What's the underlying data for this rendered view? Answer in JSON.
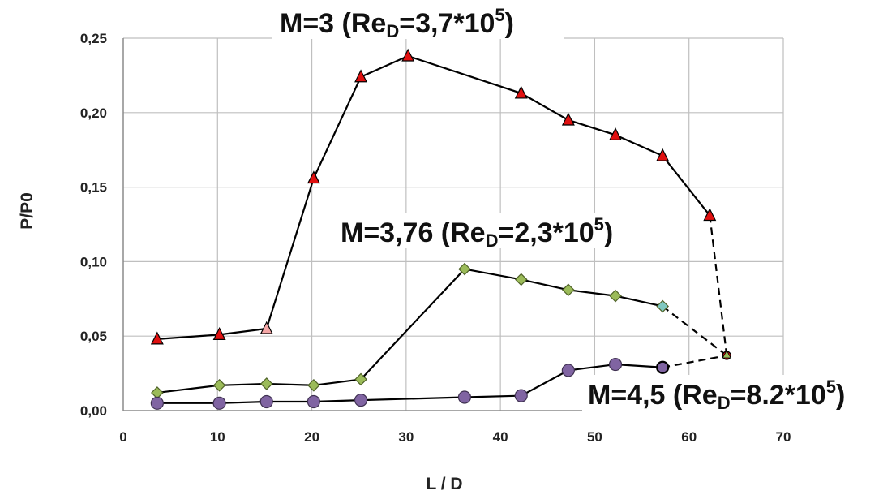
{
  "chart_data": {
    "type": "line",
    "xlabel": "L / D",
    "ylabel": "P/P0",
    "xlim": [
      0,
      70
    ],
    "ylim": [
      0,
      0.25
    ],
    "x_ticks": [
      "0",
      "10",
      "20",
      "30",
      "40",
      "50",
      "60",
      "70"
    ],
    "y_ticks": [
      "0,00",
      "0,05",
      "0,10",
      "0,15",
      "0,20",
      "0,25"
    ],
    "grid": true,
    "series": [
      {
        "name": "M=3 (ReD=3,7*10^5)",
        "marker": "triangle",
        "color": "#e01010",
        "points": [
          [
            3.6,
            0.048
          ],
          [
            10.2,
            0.051
          ],
          [
            15.2,
            0.055
          ],
          [
            20.2,
            0.156
          ],
          [
            25.2,
            0.224
          ],
          [
            30.2,
            0.238
          ],
          [
            42.2,
            0.213
          ],
          [
            47.2,
            0.195
          ],
          [
            52.2,
            0.185
          ],
          [
            57.2,
            0.171
          ],
          [
            62.2,
            0.131
          ]
        ],
        "dashed_end": [
          64.0,
          0.037
        ]
      },
      {
        "name": "M=3,76 (ReD=2,3*10^5)",
        "marker": "diamond",
        "color": "#9bbb59",
        "points": [
          [
            3.6,
            0.012
          ],
          [
            10.2,
            0.017
          ],
          [
            15.2,
            0.018
          ],
          [
            20.2,
            0.017
          ],
          [
            25.2,
            0.021
          ],
          [
            36.2,
            0.095
          ],
          [
            42.2,
            0.088
          ],
          [
            47.2,
            0.081
          ],
          [
            52.2,
            0.077
          ],
          [
            57.2,
            0.07
          ]
        ],
        "dashed_end": [
          64.0,
          0.037
        ]
      },
      {
        "name": "M=4,5 (ReD=8.2*10^5)",
        "marker": "circle",
        "color": "#8064a2",
        "points": [
          [
            3.6,
            0.005
          ],
          [
            10.2,
            0.005
          ],
          [
            15.2,
            0.006
          ],
          [
            20.2,
            0.006
          ],
          [
            25.2,
            0.007
          ],
          [
            36.2,
            0.009
          ],
          [
            42.2,
            0.01
          ],
          [
            47.2,
            0.027
          ],
          [
            52.2,
            0.031
          ],
          [
            57.2,
            0.029
          ]
        ],
        "dashed_end": [
          64.0,
          0.037
        ]
      }
    ],
    "annotations": [
      {
        "id": "m3",
        "prefix": "M=3 (Re",
        "sub": "D",
        "mid": "=3,7*10",
        "sup": "5",
        "suffix": ")"
      },
      {
        "id": "m376",
        "prefix": "M=3,76 (Re",
        "sub": "D",
        "mid": "=2,3*10",
        "sup": "5",
        "suffix": ")"
      },
      {
        "id": "m45",
        "prefix": "M=4,5 (Re",
        "sub": "D",
        "mid": "=8.2*10",
        "sup": "5",
        "suffix": ")"
      }
    ]
  }
}
